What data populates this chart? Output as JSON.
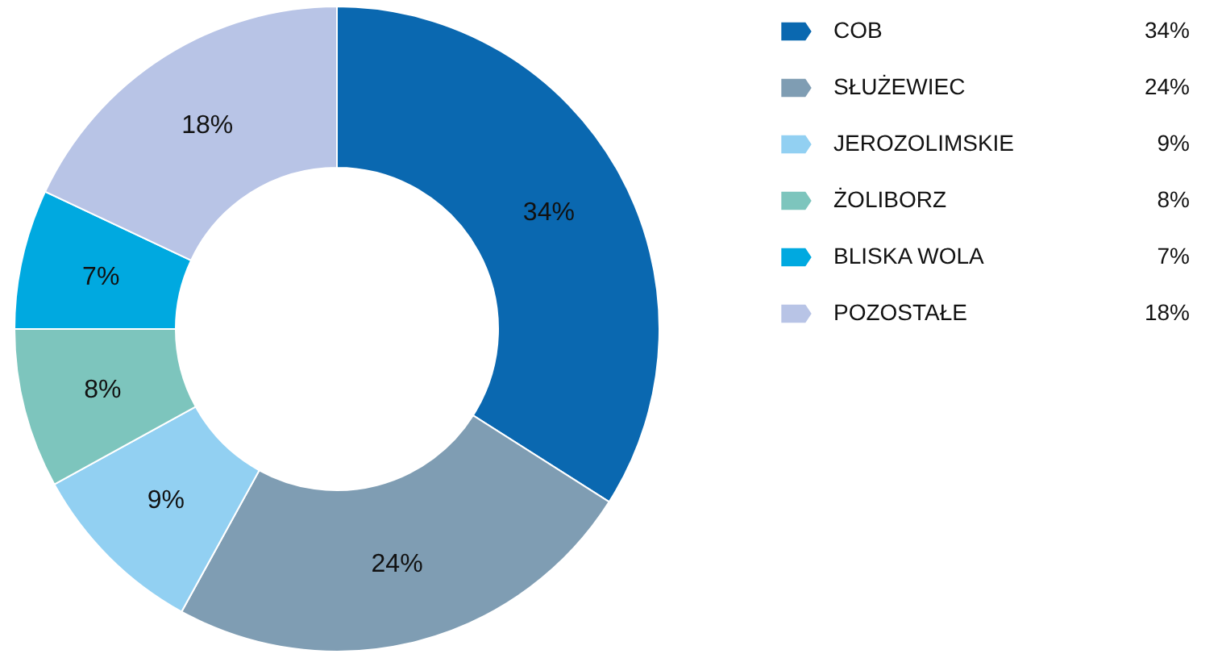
{
  "chart_data": {
    "type": "donut",
    "categories": [
      "COB",
      "SŁUŻEWIEC",
      "JEROZOLIMSKIE",
      "ŻOLIBORZ",
      "BLISKA WOLA",
      "POZOSTAŁE"
    ],
    "values": [
      34,
      24,
      9,
      8,
      7,
      18
    ],
    "value_labels": [
      "34%",
      "24%",
      "9%",
      "8%",
      "7%",
      "18%"
    ],
    "colors": [
      "#0a68b0",
      "#7f9db3",
      "#92d0f2",
      "#7dc5bd",
      "#00a9e0",
      "#b8c4e6"
    ],
    "legend": "right"
  }
}
